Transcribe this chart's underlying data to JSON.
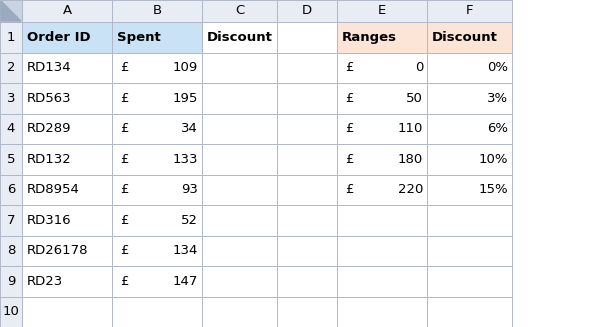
{
  "col_labels": [
    "A",
    "B",
    "C",
    "D",
    "E",
    "F"
  ],
  "row_labels": [
    "1",
    "2",
    "3",
    "4",
    "5",
    "6",
    "7",
    "8",
    "9",
    "10"
  ],
  "data_rows": [
    {
      "A": "RD134",
      "B_curr": "£",
      "B_val": "109",
      "E_curr": "£",
      "E_val": "0",
      "F": "0%"
    },
    {
      "A": "RD563",
      "B_curr": "£",
      "B_val": "195",
      "E_curr": "£",
      "E_val": "50",
      "F": "3%"
    },
    {
      "A": "RD289",
      "B_curr": "£",
      "B_val": "34",
      "E_curr": "£",
      "E_val": "110",
      "F": "6%"
    },
    {
      "A": "RD132",
      "B_curr": "£",
      "B_val": "133",
      "E_curr": "£",
      "E_val": "180",
      "F": "10%"
    },
    {
      "A": "RD8954",
      "B_curr": "£",
      "B_val": "93",
      "E_curr": "£",
      "E_val": "220",
      "F": "15%"
    },
    {
      "A": "RD316",
      "B_curr": "£",
      "B_val": "52",
      "E_curr": "",
      "E_val": "",
      "F": ""
    },
    {
      "A": "RD26178",
      "B_curr": "£",
      "B_val": "134",
      "E_curr": "",
      "E_val": "",
      "F": ""
    },
    {
      "A": "RD23",
      "B_curr": "£",
      "B_val": "147",
      "E_curr": "",
      "E_val": "",
      "F": ""
    }
  ],
  "header_bg_AB": "#c9e2f5",
  "header_bg_EF": "#fce4d6",
  "grid_color": "#b0b8c8",
  "corner_color": "#c8d4e4",
  "row_num_color": "#e8edf5",
  "col_label_color": "#e8edf5",
  "text_color": "#000000",
  "bg_white": "#ffffff",
  "font_size": 9.5
}
